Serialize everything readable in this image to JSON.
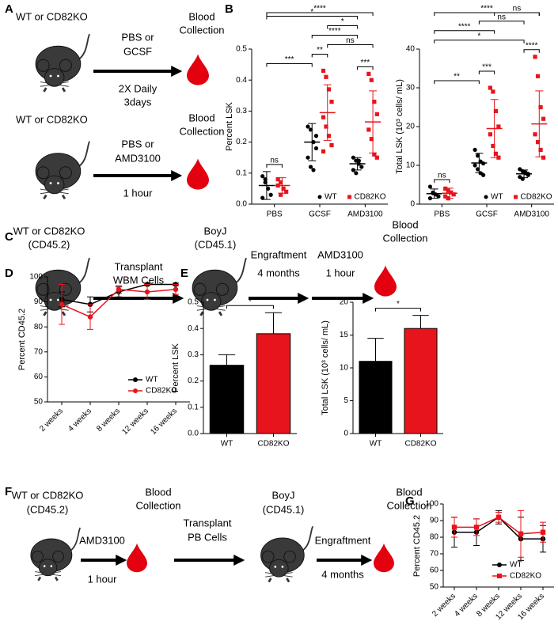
{
  "panel_labels": [
    "A",
    "B",
    "C",
    "D",
    "E",
    "F",
    "G"
  ],
  "diagram_a": {
    "row1": {
      "genotype": "WT or CD82KO",
      "treatment": [
        "PBS or",
        "GCSF"
      ],
      "schedule": [
        "2X Daily",
        "3days"
      ],
      "endpoint": [
        "Blood",
        "Collection"
      ]
    },
    "row2": {
      "genotype": "WT or CD82KO",
      "treatment": [
        "PBS or",
        "AMD3100"
      ],
      "schedule": [
        "1 hour"
      ],
      "endpoint": [
        "Blood",
        "Collection"
      ]
    }
  },
  "diagram_c": {
    "donor": [
      "WT or CD82KO",
      "(CD45.2)"
    ],
    "step1": [
      "Transplant",
      "WBM Cells"
    ],
    "recipient": [
      "BoyJ",
      "(CD45.1)"
    ],
    "step2": [
      "Engraftment",
      "4 months"
    ],
    "step3": [
      "AMD3100",
      "1 hour"
    ],
    "endpoint": [
      "Blood",
      "Collection"
    ]
  },
  "diagram_f": {
    "donor": [
      "WT or CD82KO",
      "(CD45.2)"
    ],
    "step1": [
      "AMD3100",
      "1 hour"
    ],
    "collection": [
      "Blood",
      "Collection"
    ],
    "step2": [
      "Transplant",
      "PB Cells"
    ],
    "recipient": [
      "BoyJ",
      "(CD45.1)"
    ],
    "step3": [
      "Engraftment",
      "4 months"
    ],
    "endpoint": [
      "Blood",
      "Collection"
    ]
  },
  "chart_data": [
    {
      "type": "dot",
      "ylabel": "Percent LSK",
      "categories": [
        "PBS",
        "GCSF",
        "AMD3100"
      ],
      "ylim": [
        0,
        0.5
      ],
      "yticks": [
        {
          "value": 0,
          "label": "0.0"
        },
        0.1,
        0.2,
        0.3,
        0.4,
        0.5
      ],
      "legend": "lower right",
      "series": [
        {
          "name": "WT",
          "color": "#000000",
          "marker": "circle",
          "values": [
            0.06,
            0.2,
            0.13
          ],
          "errors": [
            0.045,
            0.06,
            0.02
          ],
          "points": [
            [
              0.09,
              0.07,
              0.05,
              0.03,
              0.02,
              0.08
            ],
            [
              0.25,
              0.24,
              0.2,
              0.18,
              0.15,
              0.12,
              0.11,
              0.22
            ],
            [
              0.15,
              0.14,
              0.13,
              0.12,
              0.11,
              0.1,
              0.14
            ]
          ]
        },
        {
          "name": "CD82KO",
          "color": "#e8141b",
          "marker": "square",
          "values": [
            0.06,
            0.295,
            0.265
          ],
          "errors": [
            0.025,
            0.09,
            0.1
          ],
          "points": [
            [
              0.08,
              0.07,
              0.05,
              0.04,
              0.06,
              0.03
            ],
            [
              0.43,
              0.41,
              0.37,
              0.33,
              0.28,
              0.25,
              0.22,
              0.19,
              0.17
            ],
            [
              0.42,
              0.4,
              0.33,
              0.29,
              0.24,
              0.21,
              0.16,
              0.15
            ]
          ]
        }
      ],
      "brackets": [
        {
          "from": [
            0,
            0
          ],
          "to": [
            0,
            1
          ],
          "label": "ns"
        },
        {
          "from": [
            0,
            0
          ],
          "to": [
            1,
            0
          ],
          "label": "***"
        },
        {
          "from": [
            1,
            0
          ],
          "to": [
            1,
            1
          ],
          "label": "**"
        },
        {
          "from": [
            2,
            0
          ],
          "to": [
            2,
            1
          ],
          "label": "***"
        },
        {
          "from": [
            1,
            1
          ],
          "to": [
            2,
            1
          ],
          "label": "ns"
        },
        {
          "from": [
            1,
            0
          ],
          "to": [
            2,
            0
          ],
          "label": "****"
        },
        {
          "from": [
            1,
            1
          ],
          "to": [
            2,
            0
          ],
          "label": "*"
        },
        {
          "from": [
            0,
            0
          ],
          "to": [
            2,
            0
          ],
          "label": "*"
        },
        {
          "from": [
            0,
            0
          ],
          "to": [
            2,
            1
          ],
          "label": "****"
        }
      ]
    },
    {
      "type": "dot",
      "ylabel": "Total LSK (10³ cells/ mL)",
      "categories": [
        "PBS",
        "GCSF",
        "AMD3100"
      ],
      "ylim": [
        0,
        40
      ],
      "yticks": [
        0,
        10,
        20,
        30,
        40
      ],
      "legend": "lower right",
      "series": [
        {
          "name": "WT",
          "color": "#000000",
          "marker": "circle",
          "values": [
            2.7,
            10.6,
            7.8
          ],
          "errors": [
            1.2,
            2.5,
            1
          ],
          "points": [
            [
              4.5,
              3,
              2.5,
              2,
              1.5,
              2.8
            ],
            [
              14,
              12.5,
              11,
              10.5,
              10,
              9,
              8,
              7.5
            ],
            [
              9,
              8.5,
              8,
              7.5,
              7,
              6.5,
              8.2,
              7.8
            ]
          ]
        },
        {
          "name": "CD82KO",
          "color": "#e8141b",
          "marker": "square",
          "values": [
            2.8,
            19.5,
            20.7
          ],
          "errors": [
            1.3,
            7.5,
            8.5
          ],
          "points": [
            [
              4,
              3.5,
              3,
              2.5,
              2,
              1.5
            ],
            [
              30,
              29,
              24,
              20,
              18,
              15,
              13,
              12
            ],
            [
              38,
              33,
              25,
              22,
              18,
              16,
              14,
              12
            ]
          ]
        }
      ],
      "brackets": [
        {
          "from": [
            0,
            0
          ],
          "to": [
            0,
            1
          ],
          "label": "ns"
        },
        {
          "from": [
            0,
            0
          ],
          "to": [
            1,
            0
          ],
          "label": "**"
        },
        {
          "from": [
            1,
            0
          ],
          "to": [
            1,
            1
          ],
          "label": "***"
        },
        {
          "from": [
            2,
            0
          ],
          "to": [
            2,
            1
          ],
          "label": "****"
        },
        {
          "from": [
            0,
            0
          ],
          "to": [
            2,
            0
          ],
          "label": "*"
        },
        {
          "from": [
            0,
            0
          ],
          "to": [
            1,
            1
          ],
          "label": "****"
        },
        {
          "from": [
            1,
            0
          ],
          "to": [
            2,
            0
          ],
          "label": "ns"
        },
        {
          "from": [
            1,
            1
          ],
          "to": [
            2,
            1
          ],
          "label": "ns"
        },
        {
          "from": [
            0,
            0
          ],
          "to": [
            2,
            1
          ],
          "label": "****"
        }
      ]
    },
    {
      "type": "line",
      "ylabel": "Percent CD45.2",
      "categories": [
        "2 weeks",
        "4 weeks",
        "8 weeks",
        "12 weeks",
        "16 weeks"
      ],
      "ylim": [
        50,
        100
      ],
      "yticks": [
        50,
        60,
        70,
        80,
        90,
        100
      ],
      "legend": "lower right",
      "series": [
        {
          "name": "WT",
          "color": "#000000",
          "marker": "circle",
          "values": [
            91,
            89,
            94,
            97,
            97
          ],
          "errors": [
            3,
            3,
            2,
            0.5,
            0.5
          ]
        },
        {
          "name": "CD82KO",
          "color": "#e8141b",
          "marker": "circle",
          "values": [
            89,
            84,
            95,
            94,
            95
          ],
          "errors": [
            8,
            5,
            1.5,
            3,
            2
          ]
        }
      ]
    },
    {
      "type": "bar",
      "ylabel": "Percent LSK",
      "categories": [
        "WT",
        "CD82KO"
      ],
      "values": [
        0.26,
        0.38
      ],
      "errors": [
        0.04,
        0.08
      ],
      "colors": [
        "#000000",
        "#e8141b"
      ],
      "ylim": [
        0,
        0.5
      ],
      "yticks": [
        {
          "value": 0,
          "label": "0.0"
        },
        0.1,
        0.2,
        0.3,
        0.4,
        0.5
      ],
      "brackets": [
        {
          "from": 0,
          "to": 1,
          "label": "*"
        }
      ]
    },
    {
      "type": "bar",
      "ylabel": "Total LSK (10³ cells/ mL)",
      "categories": [
        "WT",
        "CD82KO"
      ],
      "values": [
        11,
        16
      ],
      "errors": [
        3.5,
        2
      ],
      "colors": [
        "#000000",
        "#e8141b"
      ],
      "ylim": [
        0,
        20
      ],
      "yticks": [
        0,
        5,
        10,
        15,
        20
      ],
      "brackets": [
        {
          "from": 0,
          "to": 1,
          "label": "*"
        }
      ]
    },
    {
      "type": "line",
      "ylabel": "Percent CD45.2",
      "categories": [
        "2 weeks",
        "4 weeks",
        "8 weeks",
        "12 weeks",
        "16 weeks"
      ],
      "ylim": [
        50,
        100
      ],
      "yticks": [
        50,
        60,
        70,
        80,
        90,
        100
      ],
      "legend": "lower right",
      "series": [
        {
          "name": "WT",
          "color": "#000000",
          "marker": "circle",
          "values": [
            83,
            83,
            92,
            79,
            79
          ],
          "errors": [
            9,
            8,
            4,
            13,
            8
          ]
        },
        {
          "name": "CD82KO",
          "color": "#e8141b",
          "marker": "square",
          "values": [
            86,
            86,
            92,
            82,
            83
          ],
          "errors": [
            6,
            5,
            3,
            14,
            6
          ]
        }
      ]
    }
  ]
}
